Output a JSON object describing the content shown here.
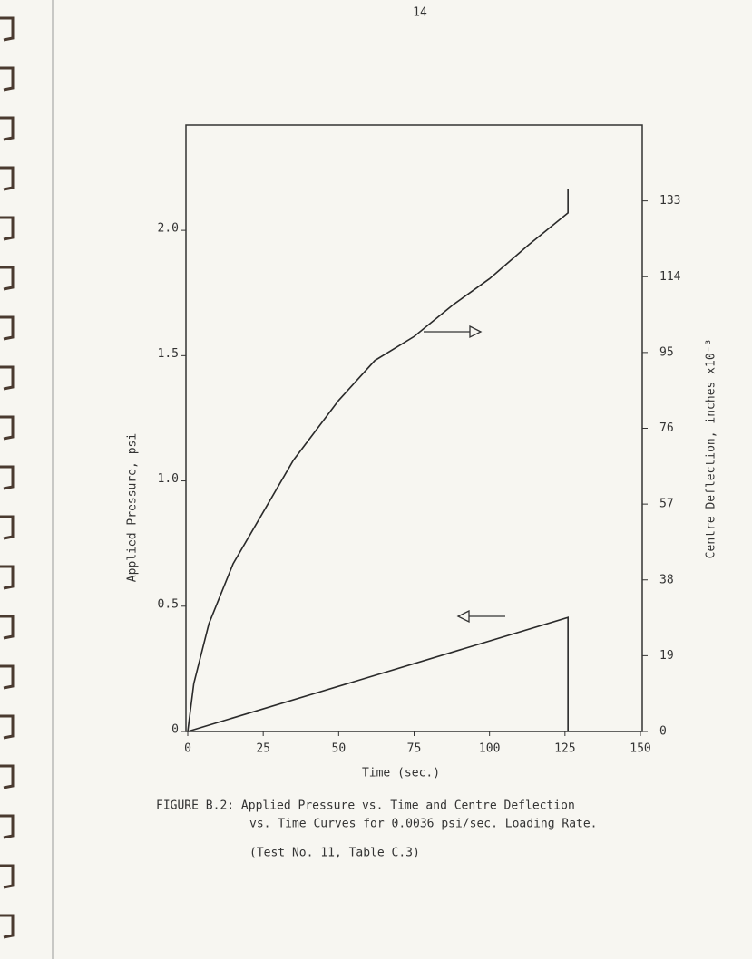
{
  "page_number": "14",
  "chart_data": {
    "type": "line",
    "xlabel": "Time (sec.)",
    "ylabel": "Applied Pressure, psi",
    "y2label": "Centre Deflection, inches x10⁻³",
    "caption": [
      "FIGURE B.2: Applied Pressure vs. Time and Centre Deflection",
      "vs. Time Curves for 0.0036 psi/sec. Loading Rate.",
      "(Test No. 11, Table C.3)"
    ],
    "xlim": [
      0,
      150
    ],
    "xticks": [
      0,
      25,
      50,
      75,
      100,
      125,
      150
    ],
    "ylim": [
      0,
      2.42
    ],
    "yticks": [
      0,
      0.5,
      {
        "value": 1,
        "label": "1.0"
      },
      1.5,
      {
        "value": 2,
        "label": "2.0"
      }
    ],
    "y2lim": [
      0,
      152
    ],
    "y2ticks": [
      0,
      19,
      38,
      57,
      76,
      95,
      114,
      133
    ],
    "series": [
      {
        "color": "#2a2a2a",
        "axis": "y",
        "x": [
          0,
          126,
          126
        ],
        "values": [
          0,
          0.455,
          0
        ]
      },
      {
        "color": "#2a2a2a",
        "axis": "y2",
        "x": [
          0,
          2,
          7,
          15,
          25,
          35,
          50,
          62,
          75,
          88,
          100,
          113,
          126,
          126
        ],
        "values": [
          0,
          12,
          27,
          42,
          55,
          68,
          83,
          93,
          99,
          107,
          113.5,
          122,
          130,
          136
        ]
      }
    ]
  }
}
